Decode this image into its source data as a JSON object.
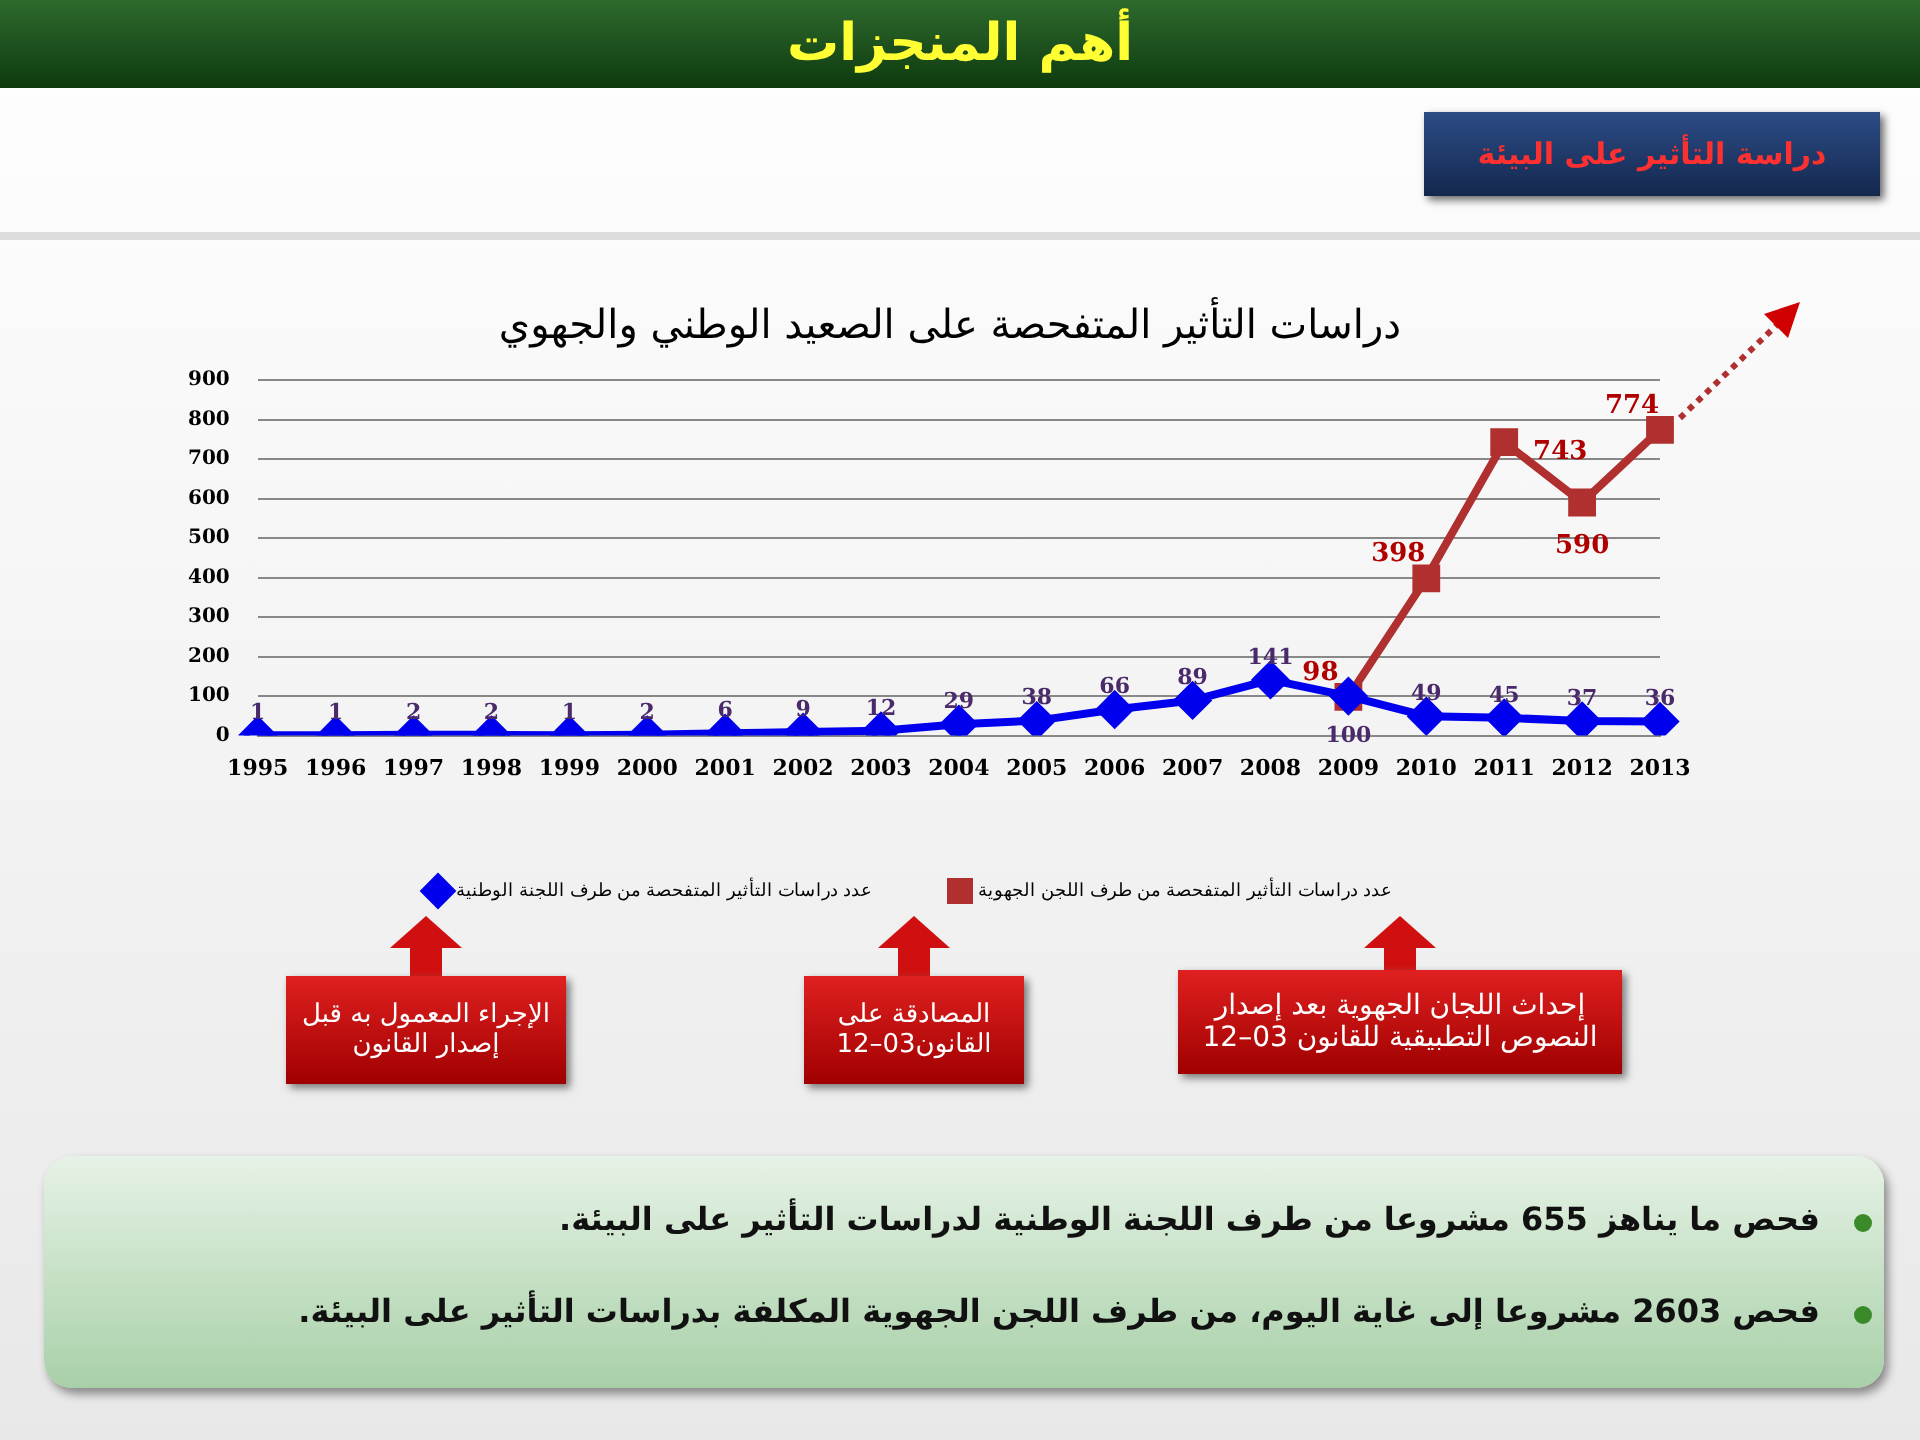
{
  "chart_data": {
    "type": "line",
    "title": "دراسات التأثير المتفحصة على الصعيد الوطني والجهوي",
    "categories": [
      "1995",
      "1996",
      "1997",
      "1998",
      "1999",
      "2000",
      "2001",
      "2002",
      "2003",
      "2004",
      "2005",
      "2006",
      "2007",
      "2008",
      "2009",
      "2010",
      "2011",
      "2012",
      "2013"
    ],
    "series": [
      {
        "name": "عدد دراسات التأثير المتفحصة من طرف اللجنة الوطنية",
        "color": "#0000ee",
        "marker": "diamond",
        "values": [
          1,
          1,
          2,
          2,
          1,
          2,
          6,
          9,
          12,
          29,
          38,
          66,
          89,
          141,
          100,
          49,
          45,
          37,
          36
        ]
      },
      {
        "name": "عدد دراسات التأثير المتفحصة من طرف اللجن الجهوية",
        "color": "#b03030",
        "marker": "square",
        "values": [
          null,
          null,
          null,
          null,
          null,
          null,
          null,
          null,
          null,
          null,
          null,
          null,
          null,
          null,
          98,
          398,
          743,
          590,
          774
        ]
      }
    ],
    "ylim": [
      0,
      900
    ],
    "yticks": [
      0,
      100,
      200,
      300,
      400,
      500,
      600,
      700,
      800,
      900
    ],
    "grid": "y",
    "legend": "bottom",
    "data_labels": true,
    "line_style": "solid",
    "annotations": [
      "أهم المنجزات",
      "دراسة التأثير على البيئة",
      "الإجراء المعمول به قبل إصدار القانون",
      "المصادقة على القانون03–12",
      "إحداث اللجان الجهوية بعد إصدار النصوص التطبيقية للقانون 03–12",
      "فحص ما يناهز 655 مشروعا من طرف اللجنة الوطنية لدراسات التأثير على البيئة.",
      "فحص 2603 مشروعا إلى غاية اليوم، من طرف اللجن الجهوية المكلفة بدراسات التأثير على البيئة."
    ]
  }
}
